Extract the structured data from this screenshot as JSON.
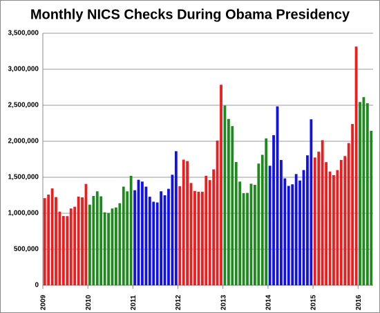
{
  "chart_data": {
    "type": "bar",
    "title": "Monthly NICS Checks During Obama Presidency",
    "categories": [
      "2009",
      null,
      null,
      null,
      null,
      null,
      null,
      null,
      null,
      null,
      null,
      null,
      "2010",
      null,
      null,
      null,
      null,
      null,
      null,
      null,
      null,
      null,
      null,
      null,
      "2011",
      null,
      null,
      null,
      null,
      null,
      null,
      null,
      null,
      null,
      null,
      null,
      "2012",
      null,
      null,
      null,
      null,
      null,
      null,
      null,
      null,
      null,
      null,
      null,
      "2013",
      null,
      null,
      null,
      null,
      null,
      null,
      null,
      null,
      null,
      null,
      null,
      "2014",
      null,
      null,
      null,
      null,
      null,
      null,
      null,
      null,
      null,
      null,
      null,
      "2015",
      null,
      null,
      null,
      null,
      null,
      null,
      null,
      null,
      null,
      null,
      null,
      "2016",
      null,
      null,
      null
    ],
    "values": [
      1210000,
      1260000,
      1345000,
      1225000,
      1023000,
      962000,
      960000,
      1067000,
      1091000,
      1232000,
      1222000,
      1407000,
      1120000,
      1240000,
      1305000,
      1235000,
      1013000,
      1005000,
      1066000,
      1081000,
      1140000,
      1370000,
      1305000,
      1520000,
      1320000,
      1465000,
      1440000,
      1370000,
      1230000,
      1160000,
      1150000,
      1305000,
      1250000,
      1340000,
      1535000,
      1862000,
      1377000,
      1745000,
      1725000,
      1420000,
      1310000,
      1300000,
      1300000,
      1520000,
      1460000,
      1610000,
      2010000,
      2785000,
      2495000,
      2310000,
      2210000,
      1712000,
      1440000,
      1280000,
      1283000,
      1410000,
      1395000,
      1690000,
      1812000,
      2040000,
      1660000,
      2085000,
      2485000,
      1740000,
      1485000,
      1380000,
      1402000,
      1545000,
      1455000,
      1600000,
      1805000,
      2305000,
      1775000,
      1855000,
      2015000,
      1710000,
      1580000,
      1530000,
      1600000,
      1740000,
      1795000,
      1975000,
      2240000,
      3315000,
      2545000,
      2613000,
      2528000,
      2145000
    ],
    "colors": [
      "#ee1c1c",
      "#1e8a1e",
      "#1010ee",
      "#ee1c1c",
      "#1e8a1e",
      "#1010ee",
      "#ee1c1c",
      "#1e8a1e"
    ],
    "ylim": [
      0,
      3500000
    ],
    "yticks": [
      0,
      {
        "value": 500000,
        "label": "500,000"
      },
      {
        "value": 1000000,
        "label": "1,000,000"
      },
      {
        "value": 1500000,
        "label": "1,500,000"
      },
      {
        "value": 2000000,
        "label": "2,000,000"
      },
      {
        "value": 2500000,
        "label": "2,500,000"
      },
      {
        "value": 3000000,
        "label": "3,000,000"
      },
      {
        "value": 3500000,
        "label": "3,500,000"
      }
    ],
    "grid": true
  }
}
